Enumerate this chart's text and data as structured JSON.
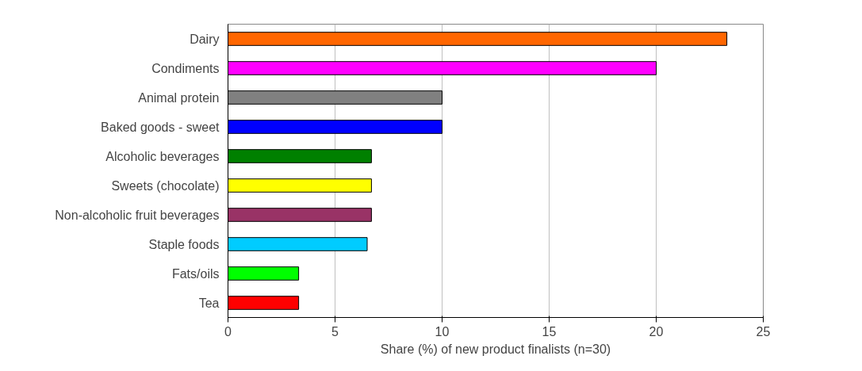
{
  "chart_data": {
    "type": "bar",
    "orientation": "horizontal",
    "xlabel": "Share (%) of new product finalists (n=30)",
    "categories": [
      "Dairy",
      "Condiments",
      "Animal protein",
      "Baked goods - sweet",
      "Alcoholic beverages",
      "Sweets (chocolate)",
      "Non-alcoholic fruit beverages",
      "Staple foods",
      "Fats/oils",
      "Tea"
    ],
    "values": [
      23.3,
      20,
      10,
      10,
      6.7,
      6.7,
      6.7,
      6.5,
      3.3,
      3.3
    ],
    "colors": [
      "#ff6600",
      "#ff00ff",
      "#808080",
      "#0000ff",
      "#008000",
      "#ffff00",
      "#993366",
      "#00ccff",
      "#00ff00",
      "#ff0000"
    ],
    "xlim": [
      0,
      25
    ],
    "xticks": [
      0,
      5,
      10,
      15,
      20,
      25
    ],
    "grid": "x"
  }
}
